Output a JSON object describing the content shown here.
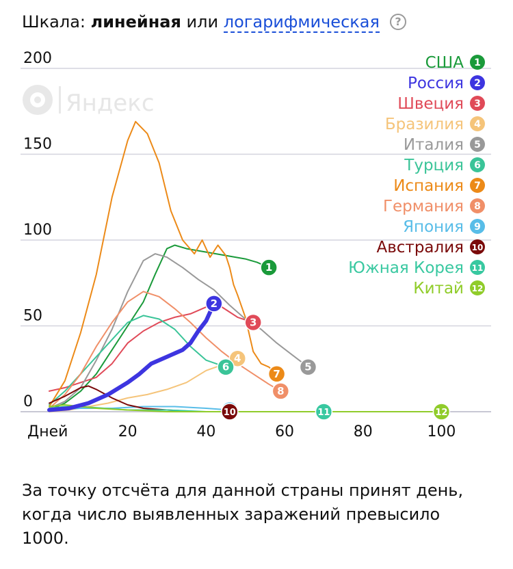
{
  "header": {
    "prefix": "Шкала:",
    "linear": "линейная",
    "or": "или",
    "log": "логарифмическая",
    "help": "?"
  },
  "watermark": "Яндекс",
  "footnote": "За точку отсчёта для данной страны принят день, когда число выявленных заражений превысило 1000.",
  "chart_data": {
    "type": "line",
    "x_label": "Дней",
    "x_ticks": [
      20,
      40,
      60,
      80,
      100
    ],
    "y_ticks": [
      0,
      50,
      100,
      150,
      200
    ],
    "xlim": [
      0,
      113
    ],
    "ylim": [
      0,
      200
    ],
    "grid": "horizontal",
    "legend_position": "top-right",
    "series": [
      {
        "name": "США",
        "marker": "1",
        "color": "#1a9a3a",
        "points": [
          [
            0,
            1
          ],
          [
            4,
            5
          ],
          [
            8,
            12
          ],
          [
            12,
            22
          ],
          [
            16,
            36
          ],
          [
            20,
            50
          ],
          [
            24,
            64
          ],
          [
            27,
            80
          ],
          [
            30,
            95
          ],
          [
            32,
            97
          ],
          [
            35,
            95
          ],
          [
            40,
            93
          ],
          [
            45,
            91
          ],
          [
            50,
            89
          ],
          [
            53,
            87
          ],
          [
            56,
            84
          ]
        ]
      },
      {
        "name": "Россия",
        "marker": "2",
        "color": "#3d35e0",
        "bold": true,
        "points": [
          [
            0,
            1
          ],
          [
            5,
            2
          ],
          [
            10,
            5
          ],
          [
            15,
            10
          ],
          [
            20,
            17
          ],
          [
            23,
            22
          ],
          [
            26,
            28
          ],
          [
            30,
            32
          ],
          [
            34,
            36
          ],
          [
            36,
            40
          ],
          [
            38,
            47
          ],
          [
            40,
            53
          ],
          [
            42,
            63
          ]
        ]
      },
      {
        "name": "Швеция",
        "marker": "3",
        "color": "#e04a58",
        "points": [
          [
            0,
            12
          ],
          [
            4,
            14
          ],
          [
            8,
            17
          ],
          [
            12,
            20
          ],
          [
            16,
            28
          ],
          [
            20,
            40
          ],
          [
            24,
            47
          ],
          [
            28,
            52
          ],
          [
            32,
            55
          ],
          [
            36,
            57
          ],
          [
            40,
            61
          ],
          [
            44,
            61
          ],
          [
            48,
            55
          ],
          [
            52,
            52
          ]
        ]
      },
      {
        "name": "Бразилия",
        "marker": "4",
        "color": "#f5c47a",
        "points": [
          [
            0,
            0
          ],
          [
            5,
            1
          ],
          [
            10,
            3
          ],
          [
            15,
            5
          ],
          [
            20,
            8
          ],
          [
            25,
            10
          ],
          [
            30,
            13
          ],
          [
            35,
            17
          ],
          [
            40,
            24
          ],
          [
            45,
            28
          ],
          [
            48,
            31
          ]
        ]
      },
      {
        "name": "Италия",
        "marker": "5",
        "color": "#999999",
        "points": [
          [
            0,
            2
          ],
          [
            4,
            6
          ],
          [
            8,
            14
          ],
          [
            12,
            30
          ],
          [
            16,
            48
          ],
          [
            20,
            70
          ],
          [
            24,
            88
          ],
          [
            27,
            92
          ],
          [
            30,
            90
          ],
          [
            34,
            84
          ],
          [
            38,
            77
          ],
          [
            42,
            71
          ],
          [
            46,
            62
          ],
          [
            50,
            54
          ],
          [
            54,
            48
          ],
          [
            58,
            40
          ],
          [
            62,
            33
          ],
          [
            66,
            26
          ]
        ]
      },
      {
        "name": "Турция",
        "marker": "6",
        "color": "#3ac498",
        "points": [
          [
            0,
            4
          ],
          [
            4,
            12
          ],
          [
            8,
            22
          ],
          [
            12,
            32
          ],
          [
            16,
            42
          ],
          [
            20,
            52
          ],
          [
            24,
            56
          ],
          [
            28,
            54
          ],
          [
            32,
            48
          ],
          [
            36,
            38
          ],
          [
            40,
            30
          ],
          [
            45,
            26
          ]
        ]
      },
      {
        "name": "Испания",
        "marker": "7",
        "color": "#ec8a18",
        "points": [
          [
            0,
            3
          ],
          [
            4,
            18
          ],
          [
            8,
            46
          ],
          [
            12,
            80
          ],
          [
            16,
            125
          ],
          [
            20,
            158
          ],
          [
            22,
            169
          ],
          [
            25,
            162
          ],
          [
            28,
            145
          ],
          [
            31,
            117
          ],
          [
            34,
            100
          ],
          [
            37,
            92
          ],
          [
            39,
            100
          ],
          [
            41,
            90
          ],
          [
            43,
            97
          ],
          [
            45,
            91
          ],
          [
            46,
            84
          ],
          [
            47,
            74
          ],
          [
            48,
            68
          ],
          [
            50,
            55
          ],
          [
            52,
            35
          ],
          [
            54,
            28
          ],
          [
            56,
            26
          ],
          [
            58,
            22
          ]
        ]
      },
      {
        "name": "Германия",
        "marker": "8",
        "color": "#f08f68",
        "points": [
          [
            0,
            2
          ],
          [
            4,
            10
          ],
          [
            8,
            22
          ],
          [
            12,
            38
          ],
          [
            16,
            52
          ],
          [
            20,
            64
          ],
          [
            24,
            70
          ],
          [
            28,
            67
          ],
          [
            32,
            60
          ],
          [
            36,
            52
          ],
          [
            40,
            43
          ],
          [
            44,
            35
          ],
          [
            48,
            28
          ],
          [
            52,
            22
          ],
          [
            56,
            16
          ],
          [
            59,
            12
          ]
        ]
      },
      {
        "name": "Япония",
        "marker": "9",
        "color": "#58bde8",
        "points": [
          [
            0,
            1
          ],
          [
            8,
            2
          ],
          [
            16,
            2
          ],
          [
            24,
            3
          ],
          [
            32,
            3
          ],
          [
            40,
            2
          ],
          [
            46,
            1
          ]
        ]
      },
      {
        "name": "Австралия",
        "marker": "10",
        "color": "#7a0a0a",
        "points": [
          [
            0,
            5
          ],
          [
            4,
            9
          ],
          [
            8,
            14
          ],
          [
            10,
            15
          ],
          [
            12,
            13
          ],
          [
            16,
            8
          ],
          [
            20,
            4
          ],
          [
            24,
            2
          ],
          [
            30,
            1
          ],
          [
            38,
            0
          ],
          [
            46,
            0
          ]
        ]
      },
      {
        "name": "Южная Корея",
        "marker": "11",
        "color": "#38c8a0",
        "points": [
          [
            0,
            2
          ],
          [
            4,
            3
          ],
          [
            8,
            3
          ],
          [
            14,
            2
          ],
          [
            20,
            1
          ],
          [
            30,
            1
          ],
          [
            40,
            0
          ],
          [
            50,
            0
          ],
          [
            60,
            0
          ],
          [
            70,
            0
          ]
        ]
      },
      {
        "name": "Китай",
        "marker": "12",
        "color": "#90cc2a",
        "points": [
          [
            0,
            3
          ],
          [
            4,
            4
          ],
          [
            8,
            3
          ],
          [
            12,
            2
          ],
          [
            20,
            1
          ],
          [
            30,
            0
          ],
          [
            50,
            0
          ],
          [
            70,
            0
          ],
          [
            85,
            0
          ],
          [
            100,
            0
          ]
        ]
      }
    ]
  }
}
